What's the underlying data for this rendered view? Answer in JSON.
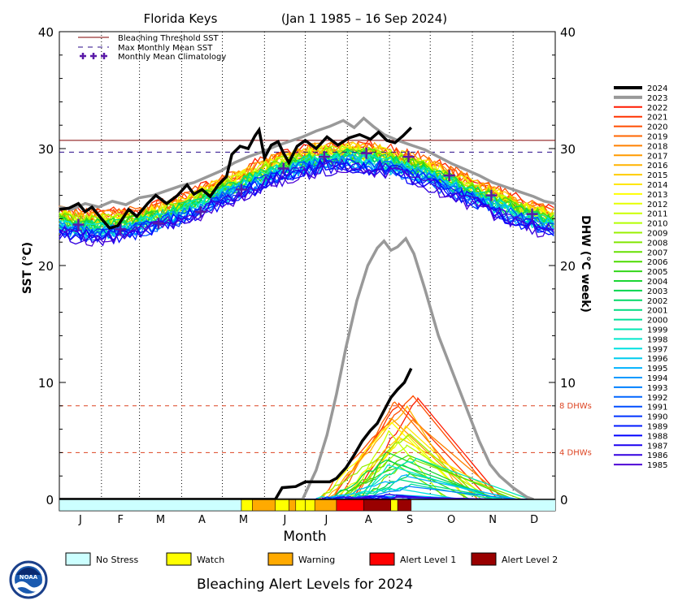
{
  "chart_data": {
    "type": "line",
    "title": "Florida Keys",
    "date_range": "(Jan 1 1985 – 16 Sep 2024)",
    "xlabel": "Month",
    "ylabel_left": "SST (°C)",
    "ylabel_right": "DHW (°C week)",
    "months": [
      "J",
      "F",
      "M",
      "A",
      "M",
      "J",
      "J",
      "A",
      "S",
      "O",
      "N",
      "D"
    ],
    "ylim": [
      0,
      40
    ],
    "yticks": [
      0,
      10,
      20,
      30,
      40
    ],
    "bleaching_threshold_sst": 30.7,
    "max_monthly_mean_sst": 29.7,
    "dhw_reference_lines": [
      {
        "value": 8,
        "label": "8 DHWs"
      },
      {
        "value": 4,
        "label": "4 DHWs"
      }
    ],
    "legend_lines": [
      {
        "label": "Bleaching Threshold SST",
        "color": "#800000",
        "style": "solid"
      },
      {
        "label": "Max Monthly Mean SST",
        "color": "#2a0a8a",
        "style": "dashed"
      },
      {
        "label": "Monthly Mean Climatology",
        "color": "#5a1aa8",
        "style": "plus"
      }
    ],
    "monthly_mean_climatology": [
      {
        "day": 15,
        "value": 23.5
      },
      {
        "day": 46,
        "value": 23.1
      },
      {
        "day": 74,
        "value": 23.6
      },
      {
        "day": 105,
        "value": 24.6
      },
      {
        "day": 135,
        "value": 26.5
      },
      {
        "day": 166,
        "value": 28.3
      },
      {
        "day": 196,
        "value": 29.3
      },
      {
        "day": 227,
        "value": 29.6
      },
      {
        "day": 258,
        "value": 29.3
      },
      {
        "day": 288,
        "value": 27.7
      },
      {
        "day": 319,
        "value": 26.0
      },
      {
        "day": 349,
        "value": 24.4
      }
    ],
    "years": [
      "2024",
      "2023",
      "2022",
      "2021",
      "2020",
      "2019",
      "2018",
      "2017",
      "2016",
      "2015",
      "2014",
      "2013",
      "2012",
      "2011",
      "2010",
      "2009",
      "2008",
      "2007",
      "2006",
      "2005",
      "2004",
      "2003",
      "2002",
      "2001",
      "2000",
      "1999",
      "1998",
      "1997",
      "1996",
      "1995",
      "1994",
      "1993",
      "1992",
      "1991",
      "1990",
      "1989",
      "1988",
      "1987",
      "1986",
      "1985"
    ],
    "year_colors": [
      "#000000",
      "#999999",
      "#ff1a00",
      "#ff3300",
      "#ff4d00",
      "#ff6600",
      "#ff8000",
      "#ff9a00",
      "#ffb300",
      "#ffcc00",
      "#ffe600",
      "#ffff00",
      "#e6ff00",
      "#ccff00",
      "#b3ff00",
      "#99f000",
      "#80e600",
      "#66e000",
      "#4ddb00",
      "#33d61a",
      "#1ad633",
      "#00d64d",
      "#00d966",
      "#00db80",
      "#00e099",
      "#00e6b3",
      "#00e6cc",
      "#00e0e0",
      "#00ccee",
      "#00b3ff",
      "#0099ff",
      "#0080ff",
      "#0066ff",
      "#004dff",
      "#0033ff",
      "#001aff",
      "#0000ff",
      "#1a00f0",
      "#3300e0",
      "#4d00d6"
    ],
    "sst_2024": [
      {
        "day": 1,
        "value": 24.8
      },
      {
        "day": 8,
        "value": 24.9
      },
      {
        "day": 15,
        "value": 25.3
      },
      {
        "day": 20,
        "value": 24.6
      },
      {
        "day": 25,
        "value": 25.0
      },
      {
        "day": 32,
        "value": 24.0
      },
      {
        "day": 38,
        "value": 23.2
      },
      {
        "day": 44,
        "value": 23.4
      },
      {
        "day": 52,
        "value": 24.8
      },
      {
        "day": 58,
        "value": 24.2
      },
      {
        "day": 66,
        "value": 25.3
      },
      {
        "day": 72,
        "value": 26.0
      },
      {
        "day": 80,
        "value": 25.3
      },
      {
        "day": 88,
        "value": 26.0
      },
      {
        "day": 95,
        "value": 26.9
      },
      {
        "day": 100,
        "value": 26.1
      },
      {
        "day": 106,
        "value": 26.5
      },
      {
        "day": 112,
        "value": 25.9
      },
      {
        "day": 118,
        "value": 26.9
      },
      {
        "day": 124,
        "value": 27.6
      },
      {
        "day": 128,
        "value": 29.5
      },
      {
        "day": 134,
        "value": 30.2
      },
      {
        "day": 140,
        "value": 30.0
      },
      {
        "day": 145,
        "value": 31.1
      },
      {
        "day": 148,
        "value": 31.6
      },
      {
        "day": 152,
        "value": 29.2
      },
      {
        "day": 157,
        "value": 30.3
      },
      {
        "day": 162,
        "value": 30.6
      },
      {
        "day": 166,
        "value": 29.6
      },
      {
        "day": 170,
        "value": 28.8
      },
      {
        "day": 176,
        "value": 30.2
      },
      {
        "day": 182,
        "value": 30.7
      },
      {
        "day": 190,
        "value": 30.0
      },
      {
        "day": 198,
        "value": 31.0
      },
      {
        "day": 206,
        "value": 30.3
      },
      {
        "day": 214,
        "value": 30.9
      },
      {
        "day": 222,
        "value": 31.2
      },
      {
        "day": 230,
        "value": 30.8
      },
      {
        "day": 236,
        "value": 31.4
      },
      {
        "day": 242,
        "value": 30.7
      },
      {
        "day": 248,
        "value": 30.5
      },
      {
        "day": 254,
        "value": 31.1
      },
      {
        "day": 260,
        "value": 31.8
      }
    ],
    "sst_2023": [
      {
        "day": 1,
        "value": 25.0
      },
      {
        "day": 10,
        "value": 24.8
      },
      {
        "day": 20,
        "value": 25.3
      },
      {
        "day": 30,
        "value": 25.0
      },
      {
        "day": 40,
        "value": 25.5
      },
      {
        "day": 50,
        "value": 25.2
      },
      {
        "day": 60,
        "value": 25.8
      },
      {
        "day": 70,
        "value": 26.0
      },
      {
        "day": 80,
        "value": 26.4
      },
      {
        "day": 90,
        "value": 26.8
      },
      {
        "day": 100,
        "value": 27.1
      },
      {
        "day": 110,
        "value": 27.6
      },
      {
        "day": 120,
        "value": 28.1
      },
      {
        "day": 130,
        "value": 28.8
      },
      {
        "day": 140,
        "value": 29.3
      },
      {
        "day": 150,
        "value": 29.7
      },
      {
        "day": 160,
        "value": 30.2
      },
      {
        "day": 170,
        "value": 30.6
      },
      {
        "day": 180,
        "value": 31.0
      },
      {
        "day": 190,
        "value": 31.5
      },
      {
        "day": 200,
        "value": 31.9
      },
      {
        "day": 210,
        "value": 32.4
      },
      {
        "day": 218,
        "value": 31.8
      },
      {
        "day": 225,
        "value": 32.6
      },
      {
        "day": 232,
        "value": 31.9
      },
      {
        "day": 240,
        "value": 31.2
      },
      {
        "day": 250,
        "value": 30.7
      },
      {
        "day": 260,
        "value": 30.3
      },
      {
        "day": 270,
        "value": 29.9
      },
      {
        "day": 280,
        "value": 29.3
      },
      {
        "day": 290,
        "value": 28.7
      },
      {
        "day": 300,
        "value": 28.2
      },
      {
        "day": 310,
        "value": 27.7
      },
      {
        "day": 320,
        "value": 27.1
      },
      {
        "day": 330,
        "value": 26.7
      },
      {
        "day": 340,
        "value": 26.3
      },
      {
        "day": 350,
        "value": 25.9
      },
      {
        "day": 358,
        "value": 25.5
      },
      {
        "day": 366,
        "value": 25.3
      }
    ],
    "dhw_2024": [
      {
        "day": 1,
        "value": 0
      },
      {
        "day": 160,
        "value": 0
      },
      {
        "day": 165,
        "value": 1.0
      },
      {
        "day": 175,
        "value": 1.1
      },
      {
        "day": 182,
        "value": 1.5
      },
      {
        "day": 200,
        "value": 1.5
      },
      {
        "day": 205,
        "value": 1.8
      },
      {
        "day": 212,
        "value": 2.7
      },
      {
        "day": 218,
        "value": 3.8
      },
      {
        "day": 224,
        "value": 5.0
      },
      {
        "day": 230,
        "value": 5.9
      },
      {
        "day": 235,
        "value": 6.5
      },
      {
        "day": 240,
        "value": 7.6
      },
      {
        "day": 245,
        "value": 8.7
      },
      {
        "day": 250,
        "value": 9.4
      },
      {
        "day": 255,
        "value": 10.0
      },
      {
        "day": 260,
        "value": 11.2
      }
    ],
    "dhw_2023": [
      {
        "day": 1,
        "value": 0
      },
      {
        "day": 180,
        "value": 0
      },
      {
        "day": 190,
        "value": 2.5
      },
      {
        "day": 198,
        "value": 5.5
      },
      {
        "day": 205,
        "value": 9.0
      },
      {
        "day": 212,
        "value": 13.0
      },
      {
        "day": 220,
        "value": 17.0
      },
      {
        "day": 228,
        "value": 20.0
      },
      {
        "day": 235,
        "value": 21.5
      },
      {
        "day": 240,
        "value": 22.1
      },
      {
        "day": 245,
        "value": 21.3
      },
      {
        "day": 250,
        "value": 21.6
      },
      {
        "day": 256,
        "value": 22.3
      },
      {
        "day": 262,
        "value": 21.0
      },
      {
        "day": 270,
        "value": 18.0
      },
      {
        "day": 280,
        "value": 14.0
      },
      {
        "day": 290,
        "value": 11.0
      },
      {
        "day": 300,
        "value": 8.0
      },
      {
        "day": 310,
        "value": 5.0
      },
      {
        "day": 318,
        "value": 3.0
      },
      {
        "day": 325,
        "value": 2.0
      },
      {
        "day": 335,
        "value": 1.0
      },
      {
        "day": 345,
        "value": 0.2
      },
      {
        "day": 350,
        "value": 0
      }
    ],
    "alert_bar": [
      {
        "start_day": 1,
        "end_day": 135,
        "level": "no_stress"
      },
      {
        "start_day": 135,
        "end_day": 143,
        "level": "watch"
      },
      {
        "start_day": 143,
        "end_day": 160,
        "level": "warning"
      },
      {
        "start_day": 160,
        "end_day": 170,
        "level": "watch"
      },
      {
        "start_day": 170,
        "end_day": 175,
        "level": "warning"
      },
      {
        "start_day": 175,
        "end_day": 182,
        "level": "watch"
      },
      {
        "start_day": 182,
        "end_day": 189,
        "level": "watch"
      },
      {
        "start_day": 189,
        "end_day": 205,
        "level": "warning"
      },
      {
        "start_day": 205,
        "end_day": 225,
        "level": "alert1"
      },
      {
        "start_day": 225,
        "end_day": 245,
        "level": "alert2"
      },
      {
        "start_day": 245,
        "end_day": 250,
        "level": "watch"
      },
      {
        "start_day": 250,
        "end_day": 260,
        "level": "alert2"
      }
    ],
    "alert_levels": [
      {
        "key": "no_stress",
        "label": "No Stress",
        "color": "#ccffff"
      },
      {
        "key": "watch",
        "label": "Watch",
        "color": "#ffff00"
      },
      {
        "key": "warning",
        "label": "Warning",
        "color": "#ffaa00"
      },
      {
        "key": "alert1",
        "label": "Alert Level 1",
        "color": "#ff0000"
      },
      {
        "key": "alert2",
        "label": "Alert Level 2",
        "color": "#990000"
      }
    ],
    "footer_title": "Bleaching Alert Levels for 2024",
    "logo_text": "NOAA"
  }
}
